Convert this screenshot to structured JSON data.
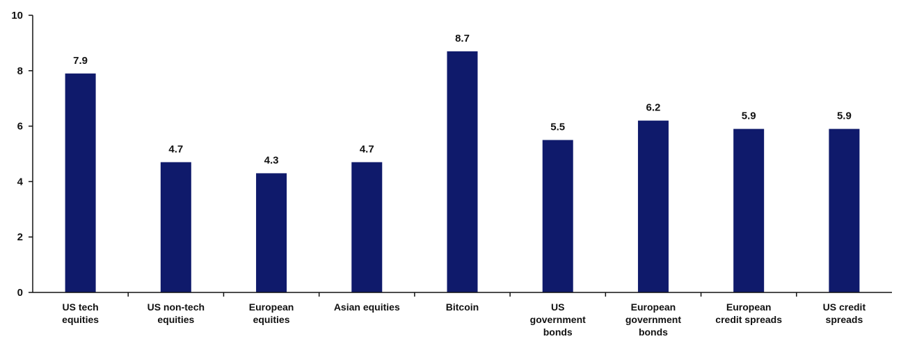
{
  "chart_data": {
    "type": "bar",
    "title": "",
    "xlabel": "",
    "ylabel": "",
    "ylim": [
      0,
      10
    ],
    "yticks": [
      0,
      2,
      4,
      6,
      8,
      10
    ],
    "grid": false,
    "legend": "none",
    "bar_color": "#0f1a6b",
    "categories": [
      [
        "US tech",
        "equities"
      ],
      [
        "US non-tech",
        "equities"
      ],
      [
        "European",
        "equities"
      ],
      [
        "Asian equities"
      ],
      [
        "Bitcoin"
      ],
      [
        "US",
        "government",
        "bonds"
      ],
      [
        "European",
        "government",
        "bonds"
      ],
      [
        "European",
        "credit spreads"
      ],
      [
        "US credit",
        "spreads"
      ]
    ],
    "values": [
      7.9,
      4.7,
      4.3,
      4.7,
      8.7,
      5.5,
      6.2,
      5.9,
      5.9
    ],
    "data_labels": [
      "7.9",
      "4.7",
      "4.3",
      "4.7",
      "8.7",
      "5.5",
      "6.2",
      "5.9",
      "5.9"
    ]
  }
}
